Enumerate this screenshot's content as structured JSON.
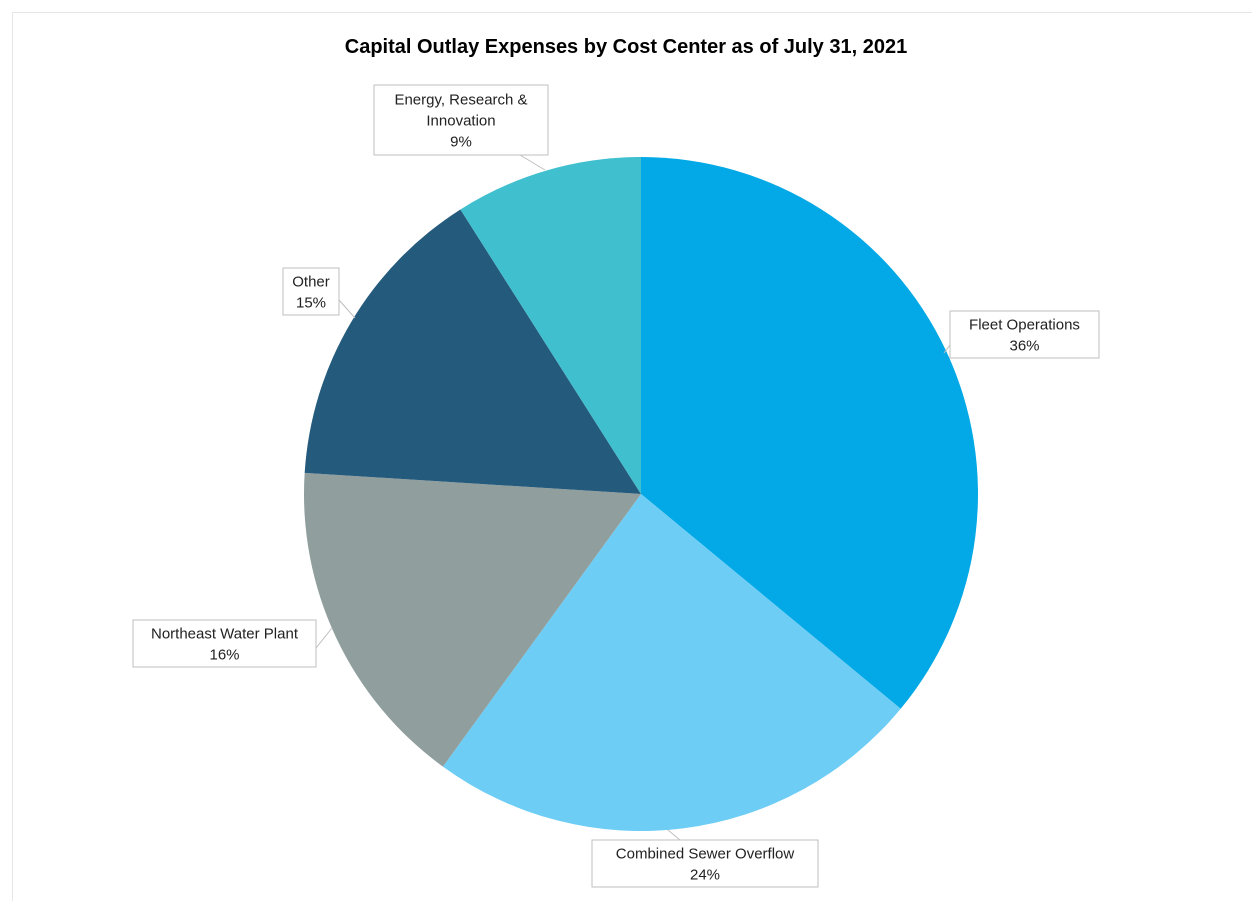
{
  "chart_data": {
    "type": "pie",
    "title": "Capital Outlay Expenses by Cost Center as of July 31, 2021",
    "slices": [
      {
        "label_lines": [
          "Fleet Operations"
        ],
        "percent_label": "36%",
        "value": 36,
        "color": "#03a9e6"
      },
      {
        "label_lines": [
          "Combined Sewer Overflow"
        ],
        "percent_label": "24%",
        "value": 24,
        "color": "#6dcdf5"
      },
      {
        "label_lines": [
          "Northeast Water Plant"
        ],
        "percent_label": "16%",
        "value": 16,
        "color": "#909e9e"
      },
      {
        "label_lines": [
          "Other"
        ],
        "percent_label": "15%",
        "value": 15,
        "color": "#245a7c"
      },
      {
        "label_lines": [
          "Energy, Research &",
          "Innovation"
        ],
        "percent_label": "9%",
        "value": 9,
        "color": "#40bfce"
      }
    ],
    "start": "12 o'clock",
    "direction": "clockwise",
    "legend": "none"
  }
}
